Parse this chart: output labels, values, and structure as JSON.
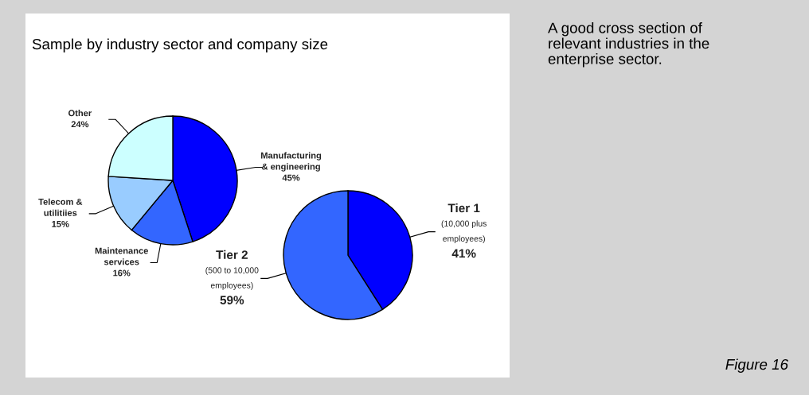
{
  "chart_data": [
    {
      "type": "pie",
      "title": "Sample by industry sector and company size",
      "categories": [
        "Manufacturing\n& engineering",
        "Maintenance\nservices",
        "Telecom &\nutilitiies",
        "Other"
      ],
      "values": [
        45,
        16,
        15,
        24
      ],
      "value_labels": [
        "45%",
        "16%",
        "15%",
        "24%"
      ],
      "colors": [
        "#0000ff",
        "#3366ff",
        "#99ccff",
        "#ccffff"
      ],
      "annotations": [
        "A good cross section of\nrelevant industries in the\nenterprise sector.",
        "Figure 16"
      ]
    },
    {
      "type": "pie",
      "categories": [
        "Tier 1\n(10,000 plus\nemployees)",
        "Tier 2\n(500 to 10,000\nemployees)"
      ],
      "values": [
        41,
        59
      ],
      "value_labels": [
        "41%",
        "59%"
      ],
      "colors": [
        "#0000ff",
        "#3366ff"
      ]
    }
  ]
}
